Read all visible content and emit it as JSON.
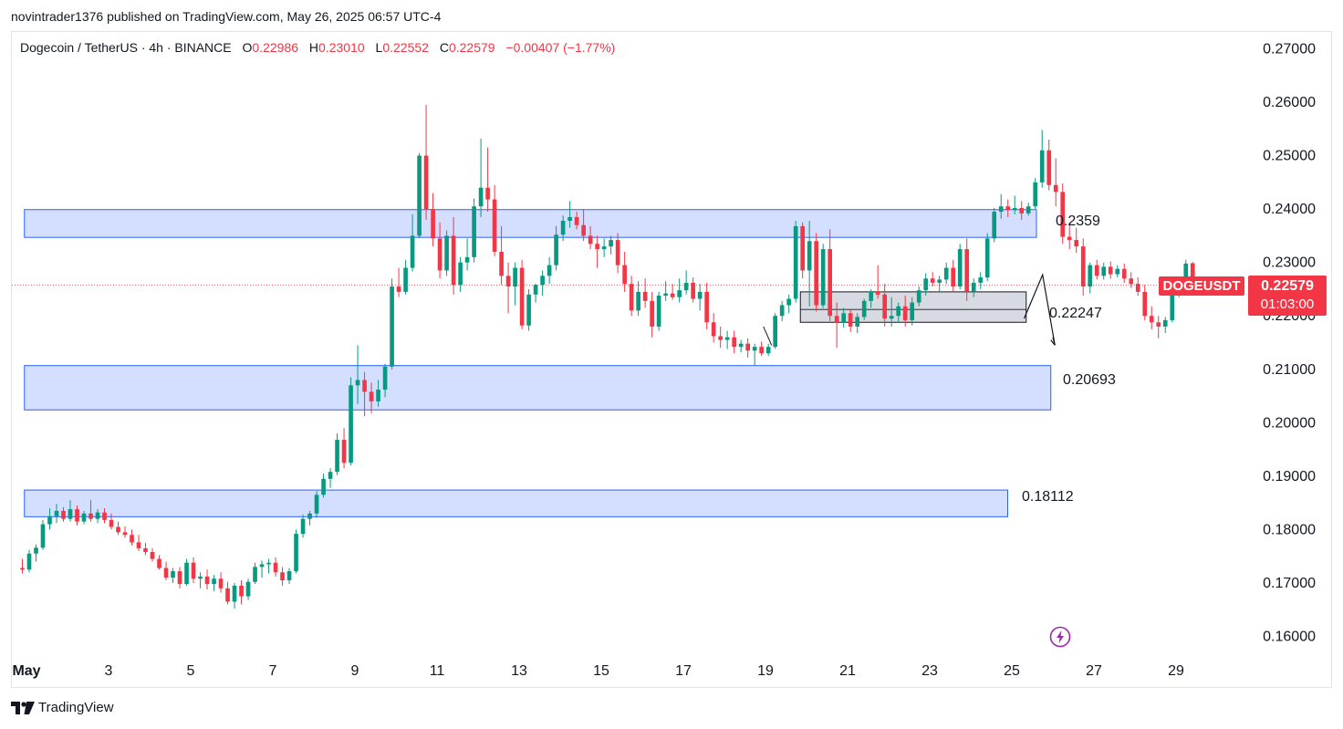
{
  "header": {
    "published_by": "novintrader1376 published on TradingView.com, May 26, 2025 06:57 UTC-4"
  },
  "symbol_info": {
    "name": "Dogecoin / TetherUS · 4h · BINANCE",
    "open_label": "O",
    "open": "0.22986",
    "high_label": "H",
    "high": "0.23010",
    "low_label": "L",
    "low": "0.22552",
    "close_label": "C",
    "close": "0.22579",
    "change": "−0.00407 (−1.77%)"
  },
  "price_badge": {
    "ticker": "DOGEUSDT",
    "price": "0.22579",
    "countdown": "01:03:00",
    "color": "#f23645"
  },
  "zone_labels": [
    "0.2359",
    "0.22247",
    "0.20693",
    "0.18112"
  ],
  "footer": {
    "brand": "TradingView"
  },
  "icons": {
    "flash": "lightning-bolt-icon",
    "brand": "tradingview-logo-icon"
  },
  "colors": {
    "up": "#22ab94",
    "up_body": "#089981",
    "down": "#f23645",
    "zone_fill": "#d4deff",
    "zone_stroke": "#2962ff",
    "range_fill": "#d1d4dc"
  },
  "chart_data": {
    "type": "candlestick",
    "ylim": [
      0.156,
      0.273
    ],
    "y_ticks": [
      "0.27000",
      "0.26000",
      "0.25000",
      "0.24000",
      "0.23000",
      "0.22000",
      "0.21000",
      "0.20000",
      "0.19000",
      "0.18000",
      "0.17000",
      "0.16000"
    ],
    "x_ticks": [
      {
        "label": "May",
        "day": 1
      },
      {
        "label": "3",
        "day": 3
      },
      {
        "label": "5",
        "day": 5
      },
      {
        "label": "7",
        "day": 7
      },
      {
        "label": "9",
        "day": 9
      },
      {
        "label": "11",
        "day": 11
      },
      {
        "label": "13",
        "day": 13
      },
      {
        "label": "15",
        "day": 15
      },
      {
        "label": "17",
        "day": 17
      },
      {
        "label": "19",
        "day": 19
      },
      {
        "label": "21",
        "day": 21
      },
      {
        "label": "23",
        "day": 23
      },
      {
        "label": "25",
        "day": 25
      },
      {
        "label": "27",
        "day": 27
      },
      {
        "label": "29",
        "day": 29
      }
    ],
    "xlim_days": [
      0.95,
      31.4
    ],
    "candle_days_per_bar": 0.1667,
    "current_price": 0.22579,
    "zones": [
      {
        "top": 0.2399,
        "bottom": 0.2347,
        "day_start": 0.95,
        "day_end": 25.6,
        "label": "0.2359"
      },
      {
        "top": 0.2107,
        "bottom": 0.2024,
        "day_start": 0.95,
        "day_end": 25.95,
        "label": "0.20693"
      },
      {
        "top": 0.1874,
        "bottom": 0.1824,
        "day_start": 0.95,
        "day_end": 24.9,
        "label": "0.18112"
      }
    ],
    "range_box": {
      "top": 0.2245,
      "bottom": 0.2188,
      "mid": 0.2212,
      "day_start": 19.85,
      "day_end": 25.35,
      "label": "0.22247"
    },
    "candles": [
      {
        "o": 0.1728,
        "h": 0.1745,
        "l": 0.1718,
        "c": 0.1725
      },
      {
        "o": 0.1725,
        "h": 0.1762,
        "l": 0.172,
        "c": 0.1755
      },
      {
        "o": 0.1755,
        "h": 0.1772,
        "l": 0.174,
        "c": 0.1766
      },
      {
        "o": 0.1766,
        "h": 0.1818,
        "l": 0.1762,
        "c": 0.181
      },
      {
        "o": 0.181,
        "h": 0.184,
        "l": 0.18,
        "c": 0.1825
      },
      {
        "o": 0.1825,
        "h": 0.1848,
        "l": 0.1812,
        "c": 0.1835
      },
      {
        "o": 0.1835,
        "h": 0.1842,
        "l": 0.1815,
        "c": 0.182
      },
      {
        "o": 0.182,
        "h": 0.1855,
        "l": 0.1815,
        "c": 0.1838
      },
      {
        "o": 0.1838,
        "h": 0.1845,
        "l": 0.1808,
        "c": 0.1815
      },
      {
        "o": 0.1815,
        "h": 0.1835,
        "l": 0.181,
        "c": 0.183
      },
      {
        "o": 0.183,
        "h": 0.1855,
        "l": 0.1815,
        "c": 0.182
      },
      {
        "o": 0.182,
        "h": 0.1838,
        "l": 0.1812,
        "c": 0.1832
      },
      {
        "o": 0.1832,
        "h": 0.184,
        "l": 0.1812,
        "c": 0.1818
      },
      {
        "o": 0.1818,
        "h": 0.183,
        "l": 0.18,
        "c": 0.1805
      },
      {
        "o": 0.1805,
        "h": 0.1815,
        "l": 0.179,
        "c": 0.1795
      },
      {
        "o": 0.1795,
        "h": 0.1806,
        "l": 0.1785,
        "c": 0.179
      },
      {
        "o": 0.179,
        "h": 0.18,
        "l": 0.177,
        "c": 0.1776
      },
      {
        "o": 0.1776,
        "h": 0.179,
        "l": 0.176,
        "c": 0.1765
      },
      {
        "o": 0.1765,
        "h": 0.1775,
        "l": 0.1752,
        "c": 0.1758
      },
      {
        "o": 0.1758,
        "h": 0.1765,
        "l": 0.174,
        "c": 0.1745
      },
      {
        "o": 0.1745,
        "h": 0.1752,
        "l": 0.1725,
        "c": 0.1728
      },
      {
        "o": 0.1728,
        "h": 0.174,
        "l": 0.1705,
        "c": 0.171
      },
      {
        "o": 0.171,
        "h": 0.1728,
        "l": 0.17,
        "c": 0.1722
      },
      {
        "o": 0.1722,
        "h": 0.173,
        "l": 0.169,
        "c": 0.1698
      },
      {
        "o": 0.1698,
        "h": 0.1745,
        "l": 0.1695,
        "c": 0.1738
      },
      {
        "o": 0.1738,
        "h": 0.1748,
        "l": 0.17,
        "c": 0.1708
      },
      {
        "o": 0.1708,
        "h": 0.172,
        "l": 0.169,
        "c": 0.1712
      },
      {
        "o": 0.1712,
        "h": 0.1725,
        "l": 0.1688,
        "c": 0.1698
      },
      {
        "o": 0.1698,
        "h": 0.1715,
        "l": 0.1685,
        "c": 0.1708
      },
      {
        "o": 0.1708,
        "h": 0.172,
        "l": 0.1682,
        "c": 0.169
      },
      {
        "o": 0.169,
        "h": 0.1702,
        "l": 0.166,
        "c": 0.1665
      },
      {
        "o": 0.1665,
        "h": 0.17,
        "l": 0.1652,
        "c": 0.1695
      },
      {
        "o": 0.1695,
        "h": 0.1705,
        "l": 0.166,
        "c": 0.1675
      },
      {
        "o": 0.1675,
        "h": 0.1708,
        "l": 0.1668,
        "c": 0.1702
      },
      {
        "o": 0.1702,
        "h": 0.1738,
        "l": 0.1698,
        "c": 0.173
      },
      {
        "o": 0.173,
        "h": 0.1742,
        "l": 0.171,
        "c": 0.1735
      },
      {
        "o": 0.1735,
        "h": 0.1745,
        "l": 0.1718,
        "c": 0.1738
      },
      {
        "o": 0.1738,
        "h": 0.1748,
        "l": 0.1712,
        "c": 0.172
      },
      {
        "o": 0.172,
        "h": 0.173,
        "l": 0.1695,
        "c": 0.1705
      },
      {
        "o": 0.1705,
        "h": 0.1728,
        "l": 0.1698,
        "c": 0.1722
      },
      {
        "o": 0.1722,
        "h": 0.18,
        "l": 0.1718,
        "c": 0.1792
      },
      {
        "o": 0.1792,
        "h": 0.1828,
        "l": 0.1785,
        "c": 0.182
      },
      {
        "o": 0.182,
        "h": 0.1835,
        "l": 0.1808,
        "c": 0.183
      },
      {
        "o": 0.183,
        "h": 0.1872,
        "l": 0.1822,
        "c": 0.1865
      },
      {
        "o": 0.1865,
        "h": 0.1905,
        "l": 0.186,
        "c": 0.1895
      },
      {
        "o": 0.1895,
        "h": 0.1915,
        "l": 0.1878,
        "c": 0.1908
      },
      {
        "o": 0.1908,
        "h": 0.198,
        "l": 0.1902,
        "c": 0.1968
      },
      {
        "o": 0.1968,
        "h": 0.199,
        "l": 0.1915,
        "c": 0.1925
      },
      {
        "o": 0.1925,
        "h": 0.2085,
        "l": 0.192,
        "c": 0.207
      },
      {
        "o": 0.207,
        "h": 0.2145,
        "l": 0.2035,
        "c": 0.208
      },
      {
        "o": 0.208,
        "h": 0.2095,
        "l": 0.2012,
        "c": 0.2058
      },
      {
        "o": 0.2058,
        "h": 0.2075,
        "l": 0.2018,
        "c": 0.204
      },
      {
        "o": 0.204,
        "h": 0.208,
        "l": 0.203,
        "c": 0.2062
      },
      {
        "o": 0.2062,
        "h": 0.211,
        "l": 0.2048,
        "c": 0.2105
      },
      {
        "o": 0.2105,
        "h": 0.227,
        "l": 0.21,
        "c": 0.2255
      },
      {
        "o": 0.2255,
        "h": 0.229,
        "l": 0.2235,
        "c": 0.2245
      },
      {
        "o": 0.2245,
        "h": 0.2305,
        "l": 0.224,
        "c": 0.229
      },
      {
        "o": 0.229,
        "h": 0.239,
        "l": 0.2283,
        "c": 0.235
      },
      {
        "o": 0.235,
        "h": 0.2505,
        "l": 0.2345,
        "c": 0.25
      },
      {
        "o": 0.25,
        "h": 0.2595,
        "l": 0.238,
        "c": 0.24
      },
      {
        "o": 0.24,
        "h": 0.243,
        "l": 0.233,
        "c": 0.2345
      },
      {
        "o": 0.2345,
        "h": 0.2375,
        "l": 0.227,
        "c": 0.2285
      },
      {
        "o": 0.2285,
        "h": 0.236,
        "l": 0.2275,
        "c": 0.235
      },
      {
        "o": 0.235,
        "h": 0.2385,
        "l": 0.224,
        "c": 0.2258
      },
      {
        "o": 0.2258,
        "h": 0.231,
        "l": 0.2245,
        "c": 0.23
      },
      {
        "o": 0.23,
        "h": 0.2345,
        "l": 0.2285,
        "c": 0.231
      },
      {
        "o": 0.231,
        "h": 0.242,
        "l": 0.23,
        "c": 0.2405
      },
      {
        "o": 0.2405,
        "h": 0.2532,
        "l": 0.2385,
        "c": 0.244
      },
      {
        "o": 0.244,
        "h": 0.2515,
        "l": 0.2395,
        "c": 0.2418
      },
      {
        "o": 0.2418,
        "h": 0.2445,
        "l": 0.2312,
        "c": 0.232
      },
      {
        "o": 0.232,
        "h": 0.2368,
        "l": 0.2258,
        "c": 0.2275
      },
      {
        "o": 0.2275,
        "h": 0.23,
        "l": 0.2205,
        "c": 0.2255
      },
      {
        "o": 0.2255,
        "h": 0.23,
        "l": 0.222,
        "c": 0.229
      },
      {
        "o": 0.229,
        "h": 0.2305,
        "l": 0.2175,
        "c": 0.2182
      },
      {
        "o": 0.2182,
        "h": 0.225,
        "l": 0.2172,
        "c": 0.224
      },
      {
        "o": 0.224,
        "h": 0.226,
        "l": 0.2225,
        "c": 0.2258
      },
      {
        "o": 0.2258,
        "h": 0.2285,
        "l": 0.2238,
        "c": 0.2275
      },
      {
        "o": 0.2275,
        "h": 0.231,
        "l": 0.226,
        "c": 0.2295
      },
      {
        "o": 0.2295,
        "h": 0.2368,
        "l": 0.2285,
        "c": 0.2352
      },
      {
        "o": 0.2352,
        "h": 0.2388,
        "l": 0.234,
        "c": 0.2378
      },
      {
        "o": 0.2378,
        "h": 0.2415,
        "l": 0.2365,
        "c": 0.2385
      },
      {
        "o": 0.2385,
        "h": 0.2395,
        "l": 0.2362,
        "c": 0.237
      },
      {
        "o": 0.237,
        "h": 0.24,
        "l": 0.234,
        "c": 0.235
      },
      {
        "o": 0.235,
        "h": 0.2368,
        "l": 0.2325,
        "c": 0.2335
      },
      {
        "o": 0.2335,
        "h": 0.235,
        "l": 0.229,
        "c": 0.2325
      },
      {
        "o": 0.2325,
        "h": 0.2345,
        "l": 0.231,
        "c": 0.233
      },
      {
        "o": 0.233,
        "h": 0.235,
        "l": 0.2315,
        "c": 0.2342
      },
      {
        "o": 0.2342,
        "h": 0.2355,
        "l": 0.228,
        "c": 0.2295
      },
      {
        "o": 0.2295,
        "h": 0.232,
        "l": 0.2245,
        "c": 0.226
      },
      {
        "o": 0.226,
        "h": 0.2275,
        "l": 0.22,
        "c": 0.221
      },
      {
        "o": 0.221,
        "h": 0.2265,
        "l": 0.22,
        "c": 0.2245
      },
      {
        "o": 0.2245,
        "h": 0.227,
        "l": 0.2215,
        "c": 0.2228
      },
      {
        "o": 0.2228,
        "h": 0.2245,
        "l": 0.216,
        "c": 0.218
      },
      {
        "o": 0.218,
        "h": 0.2245,
        "l": 0.2172,
        "c": 0.2238
      },
      {
        "o": 0.2238,
        "h": 0.2265,
        "l": 0.2228,
        "c": 0.2242
      },
      {
        "o": 0.2242,
        "h": 0.226,
        "l": 0.223,
        "c": 0.2235
      },
      {
        "o": 0.2235,
        "h": 0.227,
        "l": 0.2225,
        "c": 0.2248
      },
      {
        "o": 0.2248,
        "h": 0.2285,
        "l": 0.224,
        "c": 0.2262
      },
      {
        "o": 0.2262,
        "h": 0.2272,
        "l": 0.2225,
        "c": 0.2232
      },
      {
        "o": 0.2232,
        "h": 0.226,
        "l": 0.221,
        "c": 0.2245
      },
      {
        "o": 0.2245,
        "h": 0.2262,
        "l": 0.2175,
        "c": 0.2188
      },
      {
        "o": 0.2188,
        "h": 0.2205,
        "l": 0.215,
        "c": 0.2162
      },
      {
        "o": 0.2162,
        "h": 0.218,
        "l": 0.214,
        "c": 0.2155
      },
      {
        "o": 0.2155,
        "h": 0.2172,
        "l": 0.2138,
        "c": 0.216
      },
      {
        "o": 0.216,
        "h": 0.2172,
        "l": 0.213,
        "c": 0.2142
      },
      {
        "o": 0.2142,
        "h": 0.2155,
        "l": 0.2132,
        "c": 0.2148
      },
      {
        "o": 0.2148,
        "h": 0.2158,
        "l": 0.2122,
        "c": 0.2135
      },
      {
        "o": 0.2135,
        "h": 0.2148,
        "l": 0.2108,
        "c": 0.2142
      },
      {
        "o": 0.2142,
        "h": 0.2152,
        "l": 0.2125,
        "c": 0.213
      },
      {
        "o": 0.213,
        "h": 0.2148,
        "l": 0.2125,
        "c": 0.2142
      },
      {
        "o": 0.2142,
        "h": 0.2205,
        "l": 0.2138,
        "c": 0.22
      },
      {
        "o": 0.22,
        "h": 0.2228,
        "l": 0.219,
        "c": 0.222
      },
      {
        "o": 0.222,
        "h": 0.224,
        "l": 0.2205,
        "c": 0.2232
      },
      {
        "o": 0.2232,
        "h": 0.2378,
        "l": 0.2225,
        "c": 0.2368
      },
      {
        "o": 0.2368,
        "h": 0.2375,
        "l": 0.227,
        "c": 0.2285
      },
      {
        "o": 0.2285,
        "h": 0.2378,
        "l": 0.2218,
        "c": 0.234
      },
      {
        "o": 0.234,
        "h": 0.2355,
        "l": 0.2208,
        "c": 0.222
      },
      {
        "o": 0.222,
        "h": 0.2335,
        "l": 0.2215,
        "c": 0.2325
      },
      {
        "o": 0.2325,
        "h": 0.2362,
        "l": 0.219,
        "c": 0.22
      },
      {
        "o": 0.22,
        "h": 0.2225,
        "l": 0.214,
        "c": 0.2188
      },
      {
        "o": 0.2188,
        "h": 0.2215,
        "l": 0.2178,
        "c": 0.2205
      },
      {
        "o": 0.2205,
        "h": 0.2212,
        "l": 0.217,
        "c": 0.218
      },
      {
        "o": 0.218,
        "h": 0.2205,
        "l": 0.2168,
        "c": 0.2198
      },
      {
        "o": 0.2198,
        "h": 0.2232,
        "l": 0.2192,
        "c": 0.2228
      },
      {
        "o": 0.2228,
        "h": 0.225,
        "l": 0.2215,
        "c": 0.2245
      },
      {
        "o": 0.2245,
        "h": 0.2295,
        "l": 0.2232,
        "c": 0.224
      },
      {
        "o": 0.224,
        "h": 0.226,
        "l": 0.218,
        "c": 0.2195
      },
      {
        "o": 0.2195,
        "h": 0.2235,
        "l": 0.218,
        "c": 0.22
      },
      {
        "o": 0.22,
        "h": 0.2225,
        "l": 0.2188,
        "c": 0.2218
      },
      {
        "o": 0.2218,
        "h": 0.2238,
        "l": 0.218,
        "c": 0.2192
      },
      {
        "o": 0.2192,
        "h": 0.2235,
        "l": 0.2182,
        "c": 0.2225
      },
      {
        "o": 0.2225,
        "h": 0.2255,
        "l": 0.2218,
        "c": 0.2248
      },
      {
        "o": 0.2248,
        "h": 0.228,
        "l": 0.2238,
        "c": 0.227
      },
      {
        "o": 0.227,
        "h": 0.2282,
        "l": 0.2255,
        "c": 0.2262
      },
      {
        "o": 0.2262,
        "h": 0.2275,
        "l": 0.2245,
        "c": 0.2268
      },
      {
        "o": 0.2268,
        "h": 0.23,
        "l": 0.226,
        "c": 0.229
      },
      {
        "o": 0.229,
        "h": 0.2305,
        "l": 0.2245,
        "c": 0.2255
      },
      {
        "o": 0.2255,
        "h": 0.2335,
        "l": 0.225,
        "c": 0.2325
      },
      {
        "o": 0.2325,
        "h": 0.2345,
        "l": 0.2228,
        "c": 0.2245
      },
      {
        "o": 0.2245,
        "h": 0.227,
        "l": 0.2235,
        "c": 0.2262
      },
      {
        "o": 0.2262,
        "h": 0.2282,
        "l": 0.225,
        "c": 0.2272
      },
      {
        "o": 0.2272,
        "h": 0.2355,
        "l": 0.2265,
        "c": 0.2345
      },
      {
        "o": 0.2345,
        "h": 0.2402,
        "l": 0.2338,
        "c": 0.2395
      },
      {
        "o": 0.2395,
        "h": 0.2428,
        "l": 0.2382,
        "c": 0.2405
      },
      {
        "o": 0.2405,
        "h": 0.2418,
        "l": 0.2385,
        "c": 0.2398
      },
      {
        "o": 0.2398,
        "h": 0.2425,
        "l": 0.239,
        "c": 0.2402
      },
      {
        "o": 0.2402,
        "h": 0.2415,
        "l": 0.238,
        "c": 0.2392
      },
      {
        "o": 0.2392,
        "h": 0.2412,
        "l": 0.2388,
        "c": 0.2405
      },
      {
        "o": 0.2405,
        "h": 0.2458,
        "l": 0.24,
        "c": 0.245
      },
      {
        "o": 0.245,
        "h": 0.2548,
        "l": 0.244,
        "c": 0.251
      },
      {
        "o": 0.251,
        "h": 0.253,
        "l": 0.2435,
        "c": 0.2445
      },
      {
        "o": 0.2445,
        "h": 0.2495,
        "l": 0.2405,
        "c": 0.2432
      },
      {
        "o": 0.2432,
        "h": 0.2448,
        "l": 0.2335,
        "c": 0.2348
      },
      {
        "o": 0.2348,
        "h": 0.2375,
        "l": 0.2325,
        "c": 0.2342
      },
      {
        "o": 0.2342,
        "h": 0.2365,
        "l": 0.2318,
        "c": 0.233
      },
      {
        "o": 0.233,
        "h": 0.2345,
        "l": 0.2238,
        "c": 0.2255
      },
      {
        "o": 0.2255,
        "h": 0.23,
        "l": 0.2242,
        "c": 0.2295
      },
      {
        "o": 0.2295,
        "h": 0.2305,
        "l": 0.2268,
        "c": 0.2275
      },
      {
        "o": 0.2275,
        "h": 0.23,
        "l": 0.2268,
        "c": 0.2292
      },
      {
        "o": 0.2292,
        "h": 0.2302,
        "l": 0.227,
        "c": 0.2278
      },
      {
        "o": 0.2278,
        "h": 0.2295,
        "l": 0.2272,
        "c": 0.2288
      },
      {
        "o": 0.2288,
        "h": 0.2298,
        "l": 0.2262,
        "c": 0.227
      },
      {
        "o": 0.227,
        "h": 0.2282,
        "l": 0.2252,
        "c": 0.226
      },
      {
        "o": 0.226,
        "h": 0.2272,
        "l": 0.2238,
        "c": 0.2245
      },
      {
        "o": 0.2245,
        "h": 0.2258,
        "l": 0.2192,
        "c": 0.22
      },
      {
        "o": 0.22,
        "h": 0.2218,
        "l": 0.2175,
        "c": 0.2188
      },
      {
        "o": 0.2188,
        "h": 0.22,
        "l": 0.2158,
        "c": 0.218
      },
      {
        "o": 0.218,
        "h": 0.2198,
        "l": 0.2168,
        "c": 0.2192
      },
      {
        "o": 0.2192,
        "h": 0.2245,
        "l": 0.2188,
        "c": 0.224
      },
      {
        "o": 0.224,
        "h": 0.2272,
        "l": 0.2235,
        "c": 0.2265
      },
      {
        "o": 0.2265,
        "h": 0.2305,
        "l": 0.2258,
        "c": 0.2298
      },
      {
        "o": 0.22986,
        "h": 0.2301,
        "l": 0.22552,
        "c": 0.22579
      }
    ]
  }
}
